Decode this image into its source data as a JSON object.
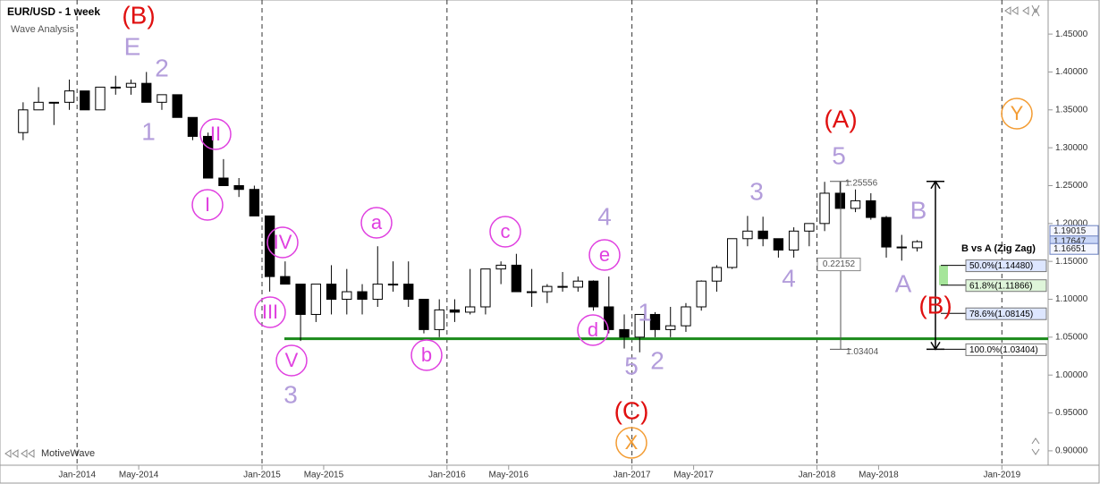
{
  "header": {
    "title": "EUR/USD - 1 week",
    "subtitle": "Wave Analysis",
    "brand": "MotiveWave"
  },
  "chart_data": {
    "type": "candlestick",
    "x": [
      "2013-09",
      "2013-10",
      "2013-11",
      "2013-12",
      "2014-01",
      "2014-02",
      "2014-03",
      "2014-04",
      "2014-05",
      "2014-06",
      "2014-07",
      "2014-08",
      "2014-09",
      "2014-10",
      "2014-11",
      "2014-12",
      "2015-01",
      "2015-02",
      "2015-03",
      "2015-04",
      "2015-05",
      "2015-06",
      "2015-07",
      "2015-08",
      "2015-09",
      "2015-10",
      "2015-11",
      "2015-12",
      "2016-01",
      "2016-02",
      "2016-03",
      "2016-04",
      "2016-05",
      "2016-06",
      "2016-07",
      "2016-08",
      "2016-09",
      "2016-10",
      "2016-11",
      "2016-12",
      "2017-01",
      "2017-02",
      "2017-03",
      "2017-04",
      "2017-05",
      "2017-06",
      "2017-07",
      "2017-08",
      "2017-09",
      "2017-10",
      "2017-11",
      "2017-12",
      "2018-01",
      "2018-02",
      "2018-03",
      "2018-04",
      "2018-05",
      "2018-06",
      "2018-07"
    ],
    "open": [
      1.32,
      1.35,
      1.36,
      1.36,
      1.375,
      1.35,
      1.38,
      1.38,
      1.385,
      1.36,
      1.37,
      1.34,
      1.315,
      1.26,
      1.25,
      1.245,
      1.21,
      1.13,
      1.12,
      1.08,
      1.12,
      1.1,
      1.11,
      1.1,
      1.12,
      1.12,
      1.1,
      1.06,
      1.086,
      1.083,
      1.09,
      1.14,
      1.145,
      1.11,
      1.11,
      1.117,
      1.116,
      1.124,
      1.09,
      1.06,
      1.05,
      1.08,
      1.06,
      1.065,
      1.09,
      1.124,
      1.142,
      1.18,
      1.19,
      1.18,
      1.165,
      1.19,
      1.2,
      1.24,
      1.22,
      1.23,
      1.208,
      1.169,
      1.168
    ],
    "high": [
      1.36,
      1.38,
      1.36,
      1.39,
      1.375,
      1.38,
      1.395,
      1.39,
      1.4,
      1.37,
      1.37,
      1.34,
      1.32,
      1.285,
      1.26,
      1.25,
      1.21,
      1.15,
      1.12,
      1.12,
      1.145,
      1.14,
      1.12,
      1.17,
      1.15,
      1.15,
      1.1,
      1.1,
      1.1,
      1.14,
      1.14,
      1.15,
      1.16,
      1.14,
      1.12,
      1.136,
      1.13,
      1.125,
      1.13,
      1.08,
      1.08,
      1.083,
      1.09,
      1.095,
      1.125,
      1.145,
      1.18,
      1.21,
      1.209,
      1.18,
      1.195,
      1.2,
      1.255,
      1.255,
      1.245,
      1.24,
      1.21,
      1.185,
      1.178
    ],
    "low": [
      1.31,
      1.35,
      1.33,
      1.35,
      1.35,
      1.35,
      1.37,
      1.37,
      1.36,
      1.35,
      1.34,
      1.31,
      1.26,
      1.25,
      1.235,
      1.21,
      1.11,
      1.12,
      1.045,
      1.07,
      1.08,
      1.08,
      1.08,
      1.09,
      1.11,
      1.09,
      1.055,
      1.05,
      1.07,
      1.08,
      1.08,
      1.12,
      1.11,
      1.09,
      1.095,
      1.11,
      1.11,
      1.085,
      1.055,
      1.035,
      1.03,
      1.05,
      1.05,
      1.057,
      1.085,
      1.11,
      1.14,
      1.17,
      1.17,
      1.155,
      1.155,
      1.17,
      1.19,
      1.22,
      1.215,
      1.205,
      1.155,
      1.151,
      1.163
    ],
    "close": [
      1.35,
      1.36,
      1.36,
      1.375,
      1.35,
      1.38,
      1.38,
      1.385,
      1.36,
      1.37,
      1.34,
      1.315,
      1.26,
      1.25,
      1.245,
      1.21,
      1.13,
      1.12,
      1.08,
      1.12,
      1.1,
      1.11,
      1.1,
      1.12,
      1.12,
      1.1,
      1.06,
      1.086,
      1.083,
      1.09,
      1.14,
      1.145,
      1.11,
      1.11,
      1.117,
      1.116,
      1.124,
      1.09,
      1.06,
      1.05,
      1.08,
      1.06,
      1.065,
      1.09,
      1.124,
      1.142,
      1.18,
      1.19,
      1.18,
      1.165,
      1.19,
      1.2,
      1.24,
      1.22,
      1.23,
      1.208,
      1.169,
      1.168,
      1.176
    ],
    "up_color": "#ffffff",
    "down_color": "#000000",
    "xlim": [
      "2013-08",
      "2019-04"
    ],
    "xticks": [
      {
        "value": "2014-01",
        "label": "Jan-2014"
      },
      {
        "value": "2014-05",
        "label": "May-2014"
      },
      {
        "value": "2015-01",
        "label": "Jan-2015"
      },
      {
        "value": "2015-05",
        "label": "May-2015"
      },
      {
        "value": "2016-01",
        "label": "Jan-2016"
      },
      {
        "value": "2016-05",
        "label": "May-2016"
      },
      {
        "value": "2017-01",
        "label": "Jan-2017"
      },
      {
        "value": "2017-05",
        "label": "May-2017"
      },
      {
        "value": "2018-01",
        "label": "Jan-2018"
      },
      {
        "value": "2018-05",
        "label": "May-2018"
      },
      {
        "value": "2019-01",
        "label": "Jan-2019"
      }
    ],
    "year_lines": [
      "2014-01",
      "2015-01",
      "2016-01",
      "2017-01",
      "2018-01",
      "2019-01"
    ],
    "ylim": [
      0.881,
      1.495
    ],
    "yticks": [
      {
        "value": 0.9,
        "label": "0.90000"
      },
      {
        "value": 0.95,
        "label": "0.95000"
      },
      {
        "value": 1.0,
        "label": "1.00000"
      },
      {
        "value": 1.05,
        "label": "1.05000"
      },
      {
        "value": 1.1,
        "label": "1.10000"
      },
      {
        "value": 1.15,
        "label": "1.15000"
      },
      {
        "value": 1.2,
        "label": "1.20000"
      },
      {
        "value": 1.25,
        "label": "1.25000"
      },
      {
        "value": 1.3,
        "label": "1.30000"
      },
      {
        "value": 1.35,
        "label": "1.35000"
      },
      {
        "value": 1.4,
        "label": "1.40000"
      },
      {
        "value": 1.45,
        "label": "1.45000"
      }
    ],
    "price_tags": [
      1.19015,
      1.17647,
      1.16651
    ],
    "support": {
      "value": 1.048,
      "color": "#1a8a1a"
    },
    "wave_labels": [
      {
        "text": "(B)",
        "color": "#e01010"
      },
      {
        "text": "E",
        "color": "#b39ddb"
      },
      {
        "text": "2",
        "color": "#b39ddb"
      },
      {
        "text": "1",
        "color": "#b39ddb"
      },
      {
        "text": "II",
        "color": "#e040e0",
        "circled": true
      },
      {
        "text": "I",
        "color": "#e040e0",
        "circled": true
      },
      {
        "text": "IV",
        "color": "#e040e0",
        "circled": true
      },
      {
        "text": "III",
        "color": "#e040e0",
        "circled": true
      },
      {
        "text": "V",
        "color": "#e040e0",
        "circled": true
      },
      {
        "text": "3",
        "color": "#b39ddb"
      },
      {
        "text": "a",
        "color": "#e040e0",
        "circled": true
      },
      {
        "text": "b",
        "color": "#e040e0",
        "circled": true
      },
      {
        "text": "c",
        "color": "#e040e0",
        "circled": true
      },
      {
        "text": "d",
        "color": "#e040e0",
        "circled": true
      },
      {
        "text": "e",
        "color": "#e040e0",
        "circled": true
      },
      {
        "text": "4",
        "color": "#b39ddb"
      },
      {
        "text": "1",
        "color": "#b39ddb"
      },
      {
        "text": "5",
        "color": "#b39ddb"
      },
      {
        "text": "2",
        "color": "#b39ddb"
      },
      {
        "text": "(C)",
        "color": "#e01010"
      },
      {
        "text": "X",
        "color": "#f39c33",
        "circled": true
      },
      {
        "text": "3",
        "color": "#b39ddb"
      },
      {
        "text": "4",
        "color": "#b39ddb"
      },
      {
        "text": "5",
        "color": "#b39ddb"
      },
      {
        "text": "(A)",
        "color": "#e01010"
      },
      {
        "text": "B",
        "color": "#b39ddb"
      },
      {
        "text": "A",
        "color": "#b39ddb"
      },
      {
        "text": "(B)",
        "color": "#e01010"
      },
      {
        "text": "Y",
        "color": "#f39c33",
        "circled": true
      }
    ],
    "measure": {
      "high": 1.25556,
      "low": 1.03404,
      "range": 0.22152
    },
    "fib_title": "B vs A (Zig Zag)",
    "fib_levels": [
      {
        "value": 1.1448,
        "label": "50.0%(1.14480)"
      },
      {
        "value": 1.11866,
        "label": "61.8%(1.11866)"
      },
      {
        "value": 1.08145,
        "label": "78.6%(1.08145)"
      },
      {
        "value": 1.03404,
        "label": "100.0%(1.03404)"
      }
    ]
  }
}
